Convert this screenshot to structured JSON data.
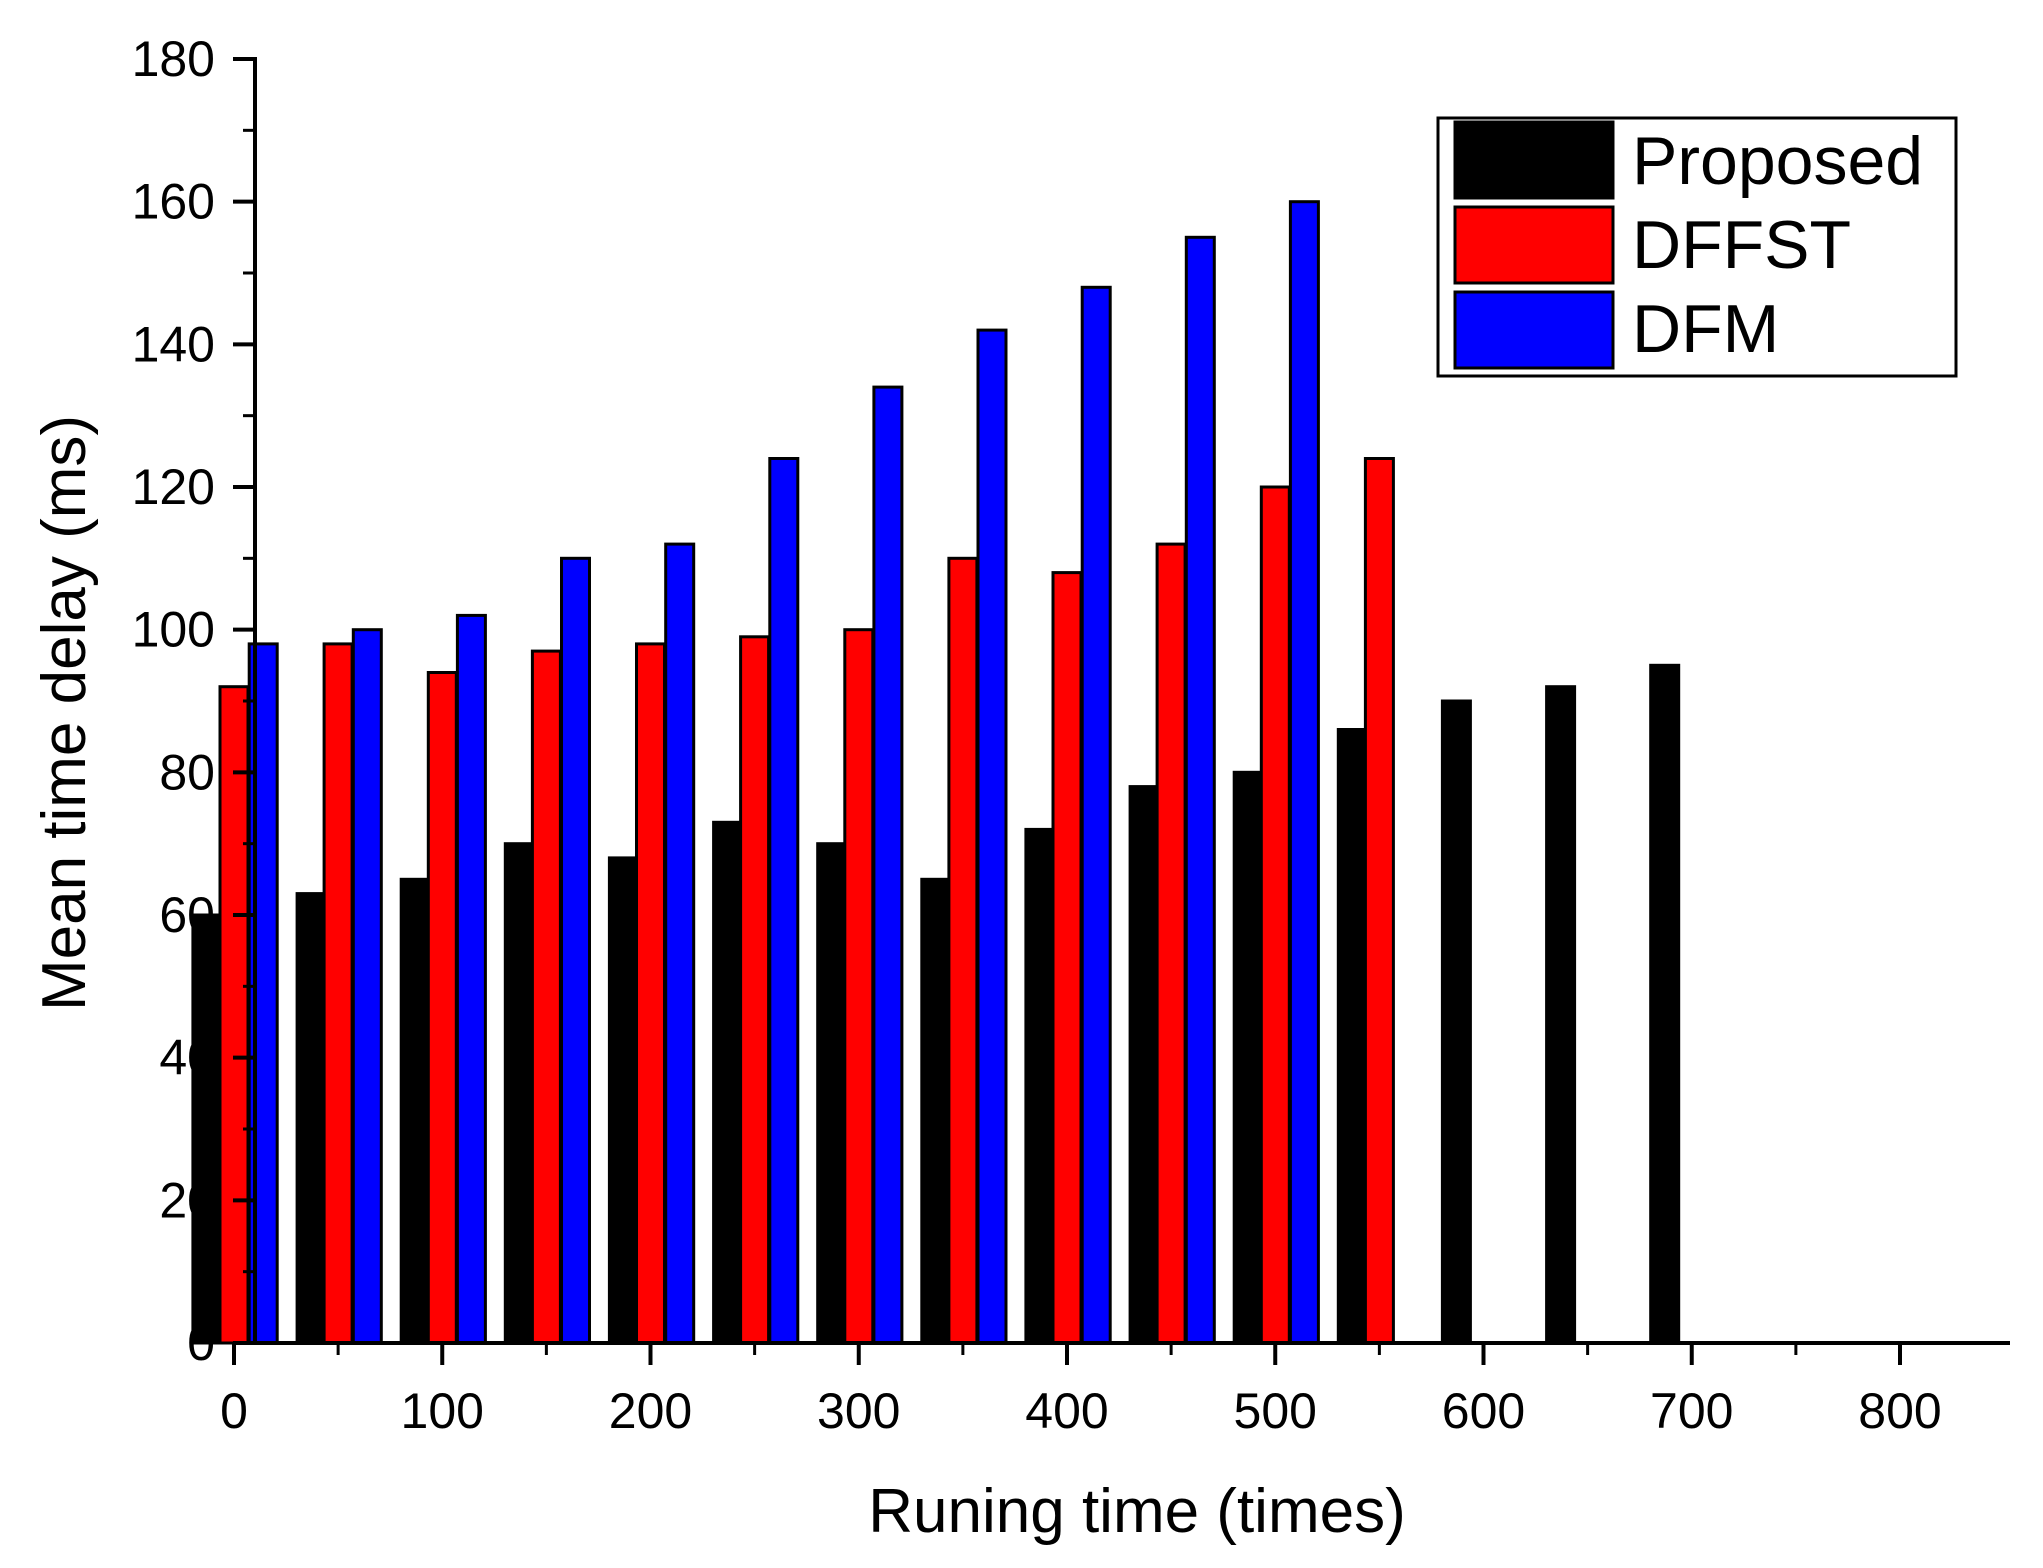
{
  "chart_data": {
    "type": "bar",
    "title": "",
    "xlabel": "Runing time (times)",
    "ylabel": "Mean time delay (ms)",
    "xlim": [
      -35,
      820
    ],
    "ylim": [
      0,
      180
    ],
    "x_ticks": [
      0,
      100,
      200,
      300,
      400,
      500,
      600,
      700,
      800
    ],
    "y_ticks": [
      0,
      20,
      40,
      60,
      80,
      100,
      120,
      140,
      160,
      180
    ],
    "x_tick_labels": [
      "0",
      "100",
      "200",
      "300",
      "400",
      "500",
      "600",
      "700",
      "800"
    ],
    "y_tick_labels": [
      "0",
      "20",
      "40",
      "60",
      "80",
      "100",
      "120",
      "140",
      "160",
      "180"
    ],
    "legend_position": "top-right",
    "series": [
      {
        "name": "Proposed",
        "color": "#000000",
        "x": [
          -13,
          37,
          87,
          137,
          187,
          237,
          287,
          337,
          387,
          437,
          487,
          537,
          587,
          637,
          687
        ],
        "values": [
          60,
          63,
          65,
          70,
          68,
          73,
          70,
          65,
          72,
          78,
          80,
          86,
          90,
          92,
          95
        ]
      },
      {
        "name": "DFFST",
        "color": "#ff0000",
        "x": [
          0,
          50,
          100,
          150,
          200,
          250,
          300,
          350,
          400,
          450,
          500,
          550
        ],
        "values": [
          92,
          98,
          94,
          97,
          98,
          99,
          100,
          110,
          108,
          112,
          120,
          124
        ]
      },
      {
        "name": "DFM",
        "color": "#0000ff",
        "x": [
          14,
          64,
          114,
          164,
          214,
          264,
          314,
          364,
          414,
          464,
          514
        ],
        "values": [
          98,
          100,
          102,
          110,
          112,
          124,
          134,
          142,
          148,
          155,
          160
        ]
      }
    ]
  }
}
